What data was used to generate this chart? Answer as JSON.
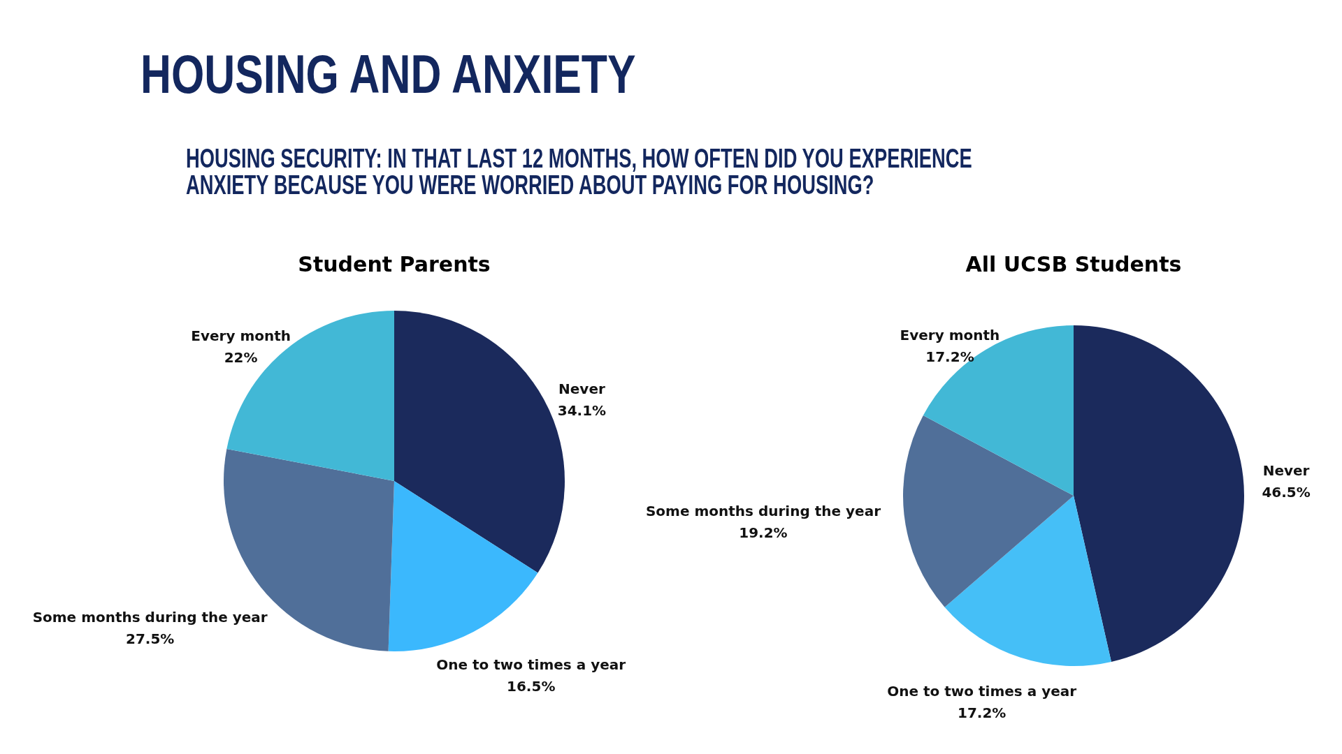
{
  "chart_data": [
    {
      "type": "pie",
      "title": "Student Parents",
      "annotations": [
        "HOUSING AND ANXIETY",
        "HOUSING SECURITY: IN THAT LAST 12 MONTHS, HOW OFTEN DID YOU EXPERIENCE ANXIETY BECAUSE YOU WERE WORRIED ABOUT PAYING FOR HOUSING?"
      ],
      "categories": [
        "Never",
        "One to two times a year",
        "Some months during the year",
        "Every month"
      ],
      "values": [
        34.1,
        16.5,
        27.5,
        22
      ],
      "value_labels": [
        "34.1%",
        "16.5%",
        "27.5%",
        "22%"
      ],
      "colors": [
        "#1b2a5c",
        "#3bb8fd",
        "#506f99",
        "#42b8d6"
      ]
    },
    {
      "type": "pie",
      "title": "All UCSB Students",
      "categories": [
        "Never",
        "One to two times a year",
        "Some months during the year",
        "Every month"
      ],
      "values": [
        46.5,
        17.2,
        19.2,
        17.2
      ],
      "value_labels": [
        "46.5%",
        "17.2%",
        "19.2%",
        "17.2%"
      ],
      "colors": [
        "#1b2a5c",
        "#45bff7",
        "#506f99",
        "#42b8d6"
      ]
    }
  ]
}
